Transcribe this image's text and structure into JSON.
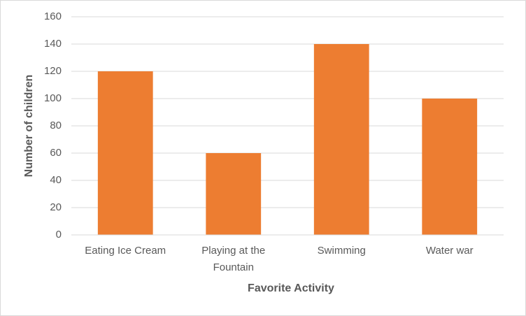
{
  "chart_data": {
    "type": "bar",
    "x_label": "Favorite Activity",
    "y_label": "Number of children",
    "categories": [
      "Eating Ice Cream",
      "Playing at the Fountain",
      "Swimming",
      "Water war"
    ],
    "values": [
      120,
      60,
      140,
      100
    ],
    "color": "#ed7d31",
    "ylim": [
      0,
      160
    ],
    "yticks": [
      0,
      20,
      40,
      60,
      80,
      100,
      120,
      140,
      160
    ],
    "grid": true
  }
}
